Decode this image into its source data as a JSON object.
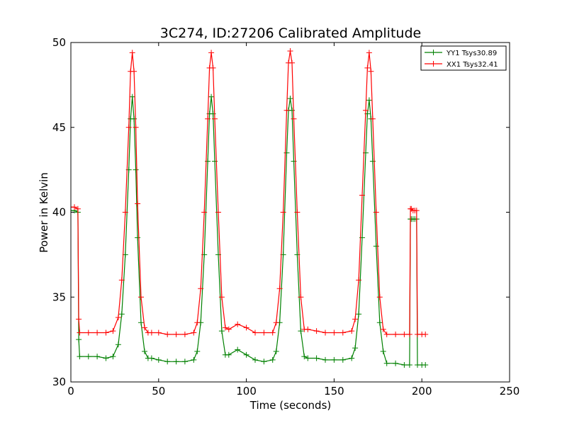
{
  "chart_data": {
    "type": "line",
    "title": "3C274, ID:27206 Calibrated Amplitude",
    "xlabel": "Time (seconds)",
    "ylabel": "Power in Kelvin",
    "xlim": [
      0,
      250
    ],
    "ylim": [
      30,
      50
    ],
    "xticks": [
      0,
      50,
      100,
      150,
      200,
      250
    ],
    "yticks": [
      30,
      35,
      40,
      45,
      50
    ],
    "xtick_labels": [
      "0",
      "50",
      "100",
      "150",
      "200",
      "250"
    ],
    "ytick_labels": [
      "30",
      "35",
      "40",
      "45",
      "50"
    ],
    "grid": false,
    "legend_position": "upper right",
    "series": [
      {
        "name": "YY1 Tsys30.89",
        "color": "#008000",
        "marker": "plus",
        "x": [
          0,
          2,
          4,
          4.5,
          5,
          10,
          15,
          20,
          24,
          27,
          29,
          31,
          33,
          34,
          35,
          36,
          37,
          38,
          40,
          42,
          44,
          46,
          50,
          55,
          60,
          65,
          70,
          72,
          74,
          76,
          78,
          79,
          80,
          81,
          82,
          84,
          86,
          88,
          90,
          95,
          100,
          105,
          110,
          115,
          117,
          119,
          121,
          123,
          124,
          125,
          126,
          127,
          129,
          131,
          133,
          135,
          140,
          145,
          150,
          155,
          160,
          162,
          164,
          166,
          168,
          169,
          170,
          171,
          172,
          174,
          176,
          178,
          180,
          185,
          190,
          193,
          193.5,
          194,
          195,
          196,
          197,
          197.5,
          200,
          202
        ],
        "y": [
          40.1,
          40.1,
          40.0,
          32.5,
          31.5,
          31.5,
          31.5,
          31.4,
          31.5,
          32.2,
          34.0,
          37.5,
          42.5,
          45.5,
          46.8,
          45.5,
          42.5,
          38.5,
          33.5,
          31.8,
          31.4,
          31.4,
          31.3,
          31.2,
          31.2,
          31.2,
          31.3,
          31.8,
          33.5,
          37.5,
          43.0,
          45.8,
          46.8,
          45.8,
          43.0,
          37.5,
          33.0,
          31.6,
          31.6,
          31.9,
          31.6,
          31.3,
          31.2,
          31.3,
          31.8,
          33.5,
          37.5,
          43.5,
          46.0,
          46.7,
          46.0,
          43.0,
          37.5,
          33.0,
          31.5,
          31.4,
          31.4,
          31.3,
          31.3,
          31.3,
          31.4,
          32.0,
          34.0,
          38.5,
          43.5,
          45.8,
          46.6,
          45.5,
          43.0,
          38.0,
          33.5,
          31.8,
          31.1,
          31.1,
          31.0,
          31.0,
          39.6,
          39.6,
          39.6,
          39.6,
          39.6,
          31.0,
          31.0,
          31.0
        ]
      },
      {
        "name": "XX1 Tsys32.41",
        "color": "#ff0000",
        "marker": "plus",
        "x": [
          0,
          2,
          4,
          4.5,
          5,
          10,
          15,
          20,
          24,
          27,
          29,
          31,
          33,
          34,
          35,
          36,
          37,
          38,
          40,
          42,
          44,
          46,
          50,
          55,
          60,
          65,
          70,
          72,
          74,
          76,
          78,
          79,
          80,
          81,
          82,
          84,
          86,
          88,
          90,
          95,
          100,
          105,
          110,
          115,
          117,
          119,
          121,
          123,
          124,
          125,
          126,
          127,
          129,
          131,
          133,
          135,
          140,
          145,
          150,
          155,
          160,
          162,
          164,
          166,
          168,
          169,
          170,
          171,
          172,
          174,
          176,
          178,
          180,
          185,
          190,
          193,
          193.5,
          194,
          195,
          196,
          197,
          197.5,
          200,
          202
        ],
        "y": [
          40.3,
          40.3,
          40.2,
          33.7,
          32.9,
          32.9,
          32.9,
          32.9,
          33.0,
          33.8,
          36.0,
          40.0,
          45.0,
          48.3,
          49.4,
          48.3,
          45.0,
          40.5,
          35.0,
          33.2,
          32.9,
          32.9,
          32.9,
          32.8,
          32.8,
          32.8,
          32.9,
          33.5,
          35.5,
          40.0,
          45.5,
          48.5,
          49.4,
          48.5,
          45.5,
          40.0,
          35.0,
          33.2,
          33.1,
          33.4,
          33.2,
          32.9,
          32.9,
          32.9,
          33.5,
          35.5,
          40.0,
          46.0,
          48.8,
          49.5,
          48.8,
          45.5,
          40.0,
          35.0,
          33.1,
          33.1,
          33.0,
          32.9,
          32.9,
          32.9,
          33.0,
          33.7,
          36.0,
          41.0,
          46.0,
          48.5,
          49.4,
          48.3,
          45.5,
          40.0,
          35.0,
          33.1,
          32.8,
          32.8,
          32.8,
          32.8,
          40.2,
          40.2,
          40.1,
          40.1,
          40.1,
          32.8,
          32.8,
          32.8
        ]
      }
    ]
  }
}
